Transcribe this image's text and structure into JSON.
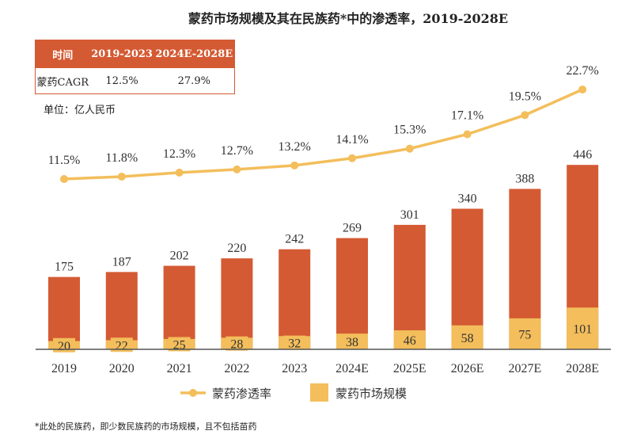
{
  "title": "蒙药市场规模及其在民族药*中的渗透率，2019-2028E",
  "cagr_table": {
    "headers": [
      "时间",
      "2019-2023",
      "2024E-2028E"
    ],
    "row": [
      "蒙药CAGR",
      "12.5%",
      "27.9%"
    ]
  },
  "unit": "单位：亿人民币",
  "footnote": "*此处的民族药，即少数民族药的市场规模，且不包括苗药",
  "colors": {
    "total_bar": "#D45A33",
    "mongolian_bar": "#F3BE5B",
    "line": "#F3BE5B",
    "table_header": "#D45A33"
  },
  "chart_data": {
    "type": "bar+line",
    "categories": [
      "2019",
      "2020",
      "2021",
      "2022",
      "2023",
      "2024E",
      "2025E",
      "2026E",
      "2027E",
      "2028E"
    ],
    "series": [
      {
        "values": [
          175,
          187,
          202,
          220,
          242,
          269,
          301,
          340,
          388,
          446
        ],
        "kind": "bar",
        "color": "#D45A33"
      },
      {
        "name": "蒙药市场规模",
        "values": [
          20,
          22,
          25,
          28,
          32,
          38,
          46,
          58,
          75,
          101
        ],
        "kind": "bar",
        "color": "#F3BE5B"
      },
      {
        "name": "蒙药渗透率",
        "values": [
          11.5,
          11.8,
          12.3,
          12.7,
          13.2,
          14.1,
          15.3,
          17.1,
          19.5,
          22.7
        ],
        "labels": [
          "11.5%",
          "11.8%",
          "12.3%",
          "12.7%",
          "13.2%",
          "14.1%",
          "15.3%",
          "17.1%",
          "19.5%",
          "22.7%"
        ],
        "kind": "line",
        "color": "#F3BE5B"
      }
    ],
    "legend": {
      "position": "bottom",
      "entries": [
        "蒙药渗透率",
        "蒙药市场规模"
      ]
    },
    "grid": false
  }
}
